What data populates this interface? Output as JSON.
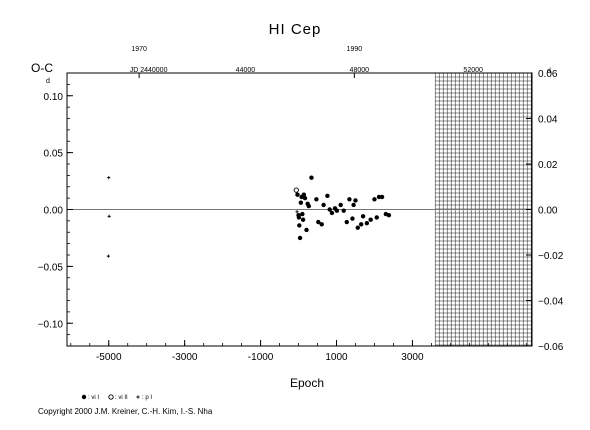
{
  "chart_data": {
    "type": "scatter",
    "title": "HI Cep",
    "xlabel": "Epoch",
    "ylabel": "O-C",
    "ylabel_unit": "d",
    "xlim": [
      -6100,
      6150
    ],
    "ylim": [
      -0.12,
      0.12
    ],
    "right_ylim": [
      -0.06,
      0.06
    ],
    "right_ylim_unit": "d",
    "grid": false,
    "zero_line": true,
    "x_ticks": [
      -5000,
      -3000,
      -1000,
      1000,
      3000
    ],
    "x_tick_labels": [
      "-5000",
      "-3000",
      "-1000",
      "1000",
      "3000"
    ],
    "y_ticks": [
      -0.1,
      -0.05,
      0.0,
      0.05,
      0.1
    ],
    "y_tick_labels": [
      "−0.10",
      "−0.05",
      "0.00",
      "0.05",
      "0.10"
    ],
    "right_ticks": [
      -0.06,
      -0.04,
      -0.02,
      0.0,
      0.02,
      0.04,
      0.06
    ],
    "right_tick_labels": [
      "−0.06",
      "−0.04",
      "−0.02",
      "0.00",
      "0.02",
      "0.04",
      "0.06"
    ],
    "top_year_ticks": [
      {
        "x": -4200,
        "label": "1970"
      },
      {
        "x": 1470,
        "label": "1990"
      }
    ],
    "top_jd_ticks": [
      {
        "x": -3950,
        "label": "JD 2440000"
      },
      {
        "x": -1400,
        "label": "44000"
      },
      {
        "x": 1600,
        "label": "48000"
      },
      {
        "x": 4600,
        "label": "52000"
      }
    ],
    "future_region": {
      "from": 3600,
      "to": 6150
    },
    "series": [
      {
        "name": ": vi I",
        "marker": "filled",
        "points": [
          [
            -28,
            0.013
          ],
          [
            0,
            -0.005
          ],
          [
            10,
            -0.007
          ],
          [
            20,
            -0.014
          ],
          [
            40,
            -0.025
          ],
          [
            60,
            0.006
          ],
          [
            80,
            0.011
          ],
          [
            100,
            -0.004
          ],
          [
            120,
            -0.009
          ],
          [
            140,
            0.013
          ],
          [
            170,
            0.01
          ],
          [
            210,
            -0.018
          ],
          [
            240,
            0.005
          ],
          [
            270,
            0.003
          ],
          [
            340,
            0.028
          ],
          [
            470,
            0.009
          ],
          [
            520,
            -0.011
          ],
          [
            610,
            -0.013
          ],
          [
            660,
            0.004
          ],
          [
            760,
            0.012
          ],
          [
            820,
            0.0
          ],
          [
            880,
            -0.003
          ],
          [
            960,
            0.001
          ],
          [
            1010,
            -0.001
          ],
          [
            1110,
            0.004
          ],
          [
            1190,
            -0.001
          ],
          [
            1270,
            -0.011
          ],
          [
            1340,
            0.009
          ],
          [
            1420,
            -0.008
          ],
          [
            1450,
            0.004
          ],
          [
            1500,
            0.008
          ],
          [
            1560,
            -0.016
          ],
          [
            1650,
            -0.013
          ],
          [
            1700,
            -0.006
          ],
          [
            1800,
            -0.012
          ],
          [
            1900,
            -0.009
          ],
          [
            2000,
            0.009
          ],
          [
            2060,
            -0.007
          ],
          [
            2120,
            0.011
          ],
          [
            2200,
            0.011
          ],
          [
            2300,
            -0.004
          ],
          [
            2380,
            -0.005
          ]
        ]
      },
      {
        "name": ": vi II",
        "marker": "open",
        "points": [
          [
            -60,
            0.017
          ]
        ]
      },
      {
        "name": ": p I",
        "marker": "plus",
        "points": [
          [
            -5000,
            0.028
          ],
          [
            -4990,
            -0.006
          ],
          [
            -5010,
            -0.041
          ],
          [
            -40,
            -0.002
          ]
        ]
      }
    ]
  },
  "copyright": "Copyright 2000 J.M. Kreiner, C.-H. Kim, I.-S. Nha"
}
